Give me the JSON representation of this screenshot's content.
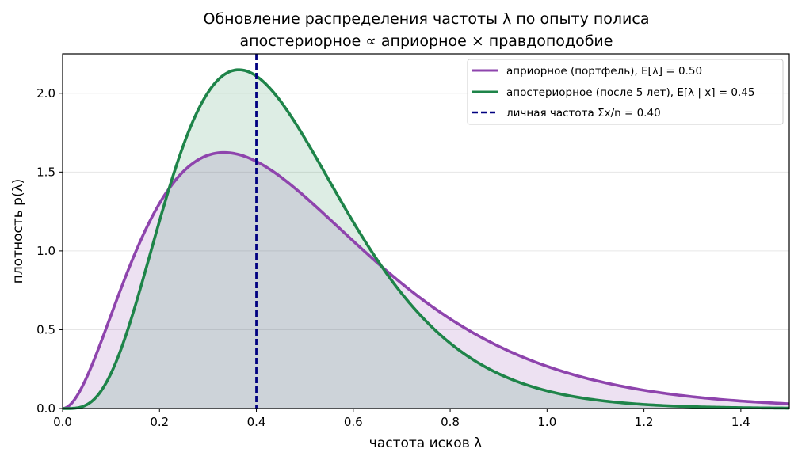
{
  "chart_data": {
    "type": "line",
    "title": "Обновление распределения частоты λ по опыту полиса",
    "subtitle": "апостериорное ∝ априорное × правдоподобие",
    "xlabel": "частота исков λ",
    "ylabel": "плотность p(λ)",
    "xlim": [
      0,
      1.5
    ],
    "ylim": [
      0,
      2.25
    ],
    "xticks": [
      "0.0",
      "0.2",
      "0.4",
      "0.6",
      "0.8",
      "1.0",
      "1.2",
      "1.4"
    ],
    "yticks": [
      "0.0",
      "0.5",
      "1.0",
      "1.5",
      "2.0"
    ],
    "grid": "horizontal",
    "legend_position": "top-right",
    "series": [
      {
        "name": "априорное (портфель), E[λ] = 0.50",
        "color": "#8e44ad",
        "style": "solid-filled",
        "distribution": "gamma",
        "shape": 3.0,
        "rate": 6.0
      },
      {
        "name": "апостериорное (после 5 лет), E[λ | x] = 0.45",
        "color": "#1e8449",
        "style": "solid-filled",
        "distribution": "gamma",
        "shape": 5.0,
        "rate": 11.0
      }
    ],
    "vline": {
      "name": "личная частота Σx/n = 0.40",
      "x": 0.4,
      "color": "#000080",
      "style": "dashed"
    }
  }
}
